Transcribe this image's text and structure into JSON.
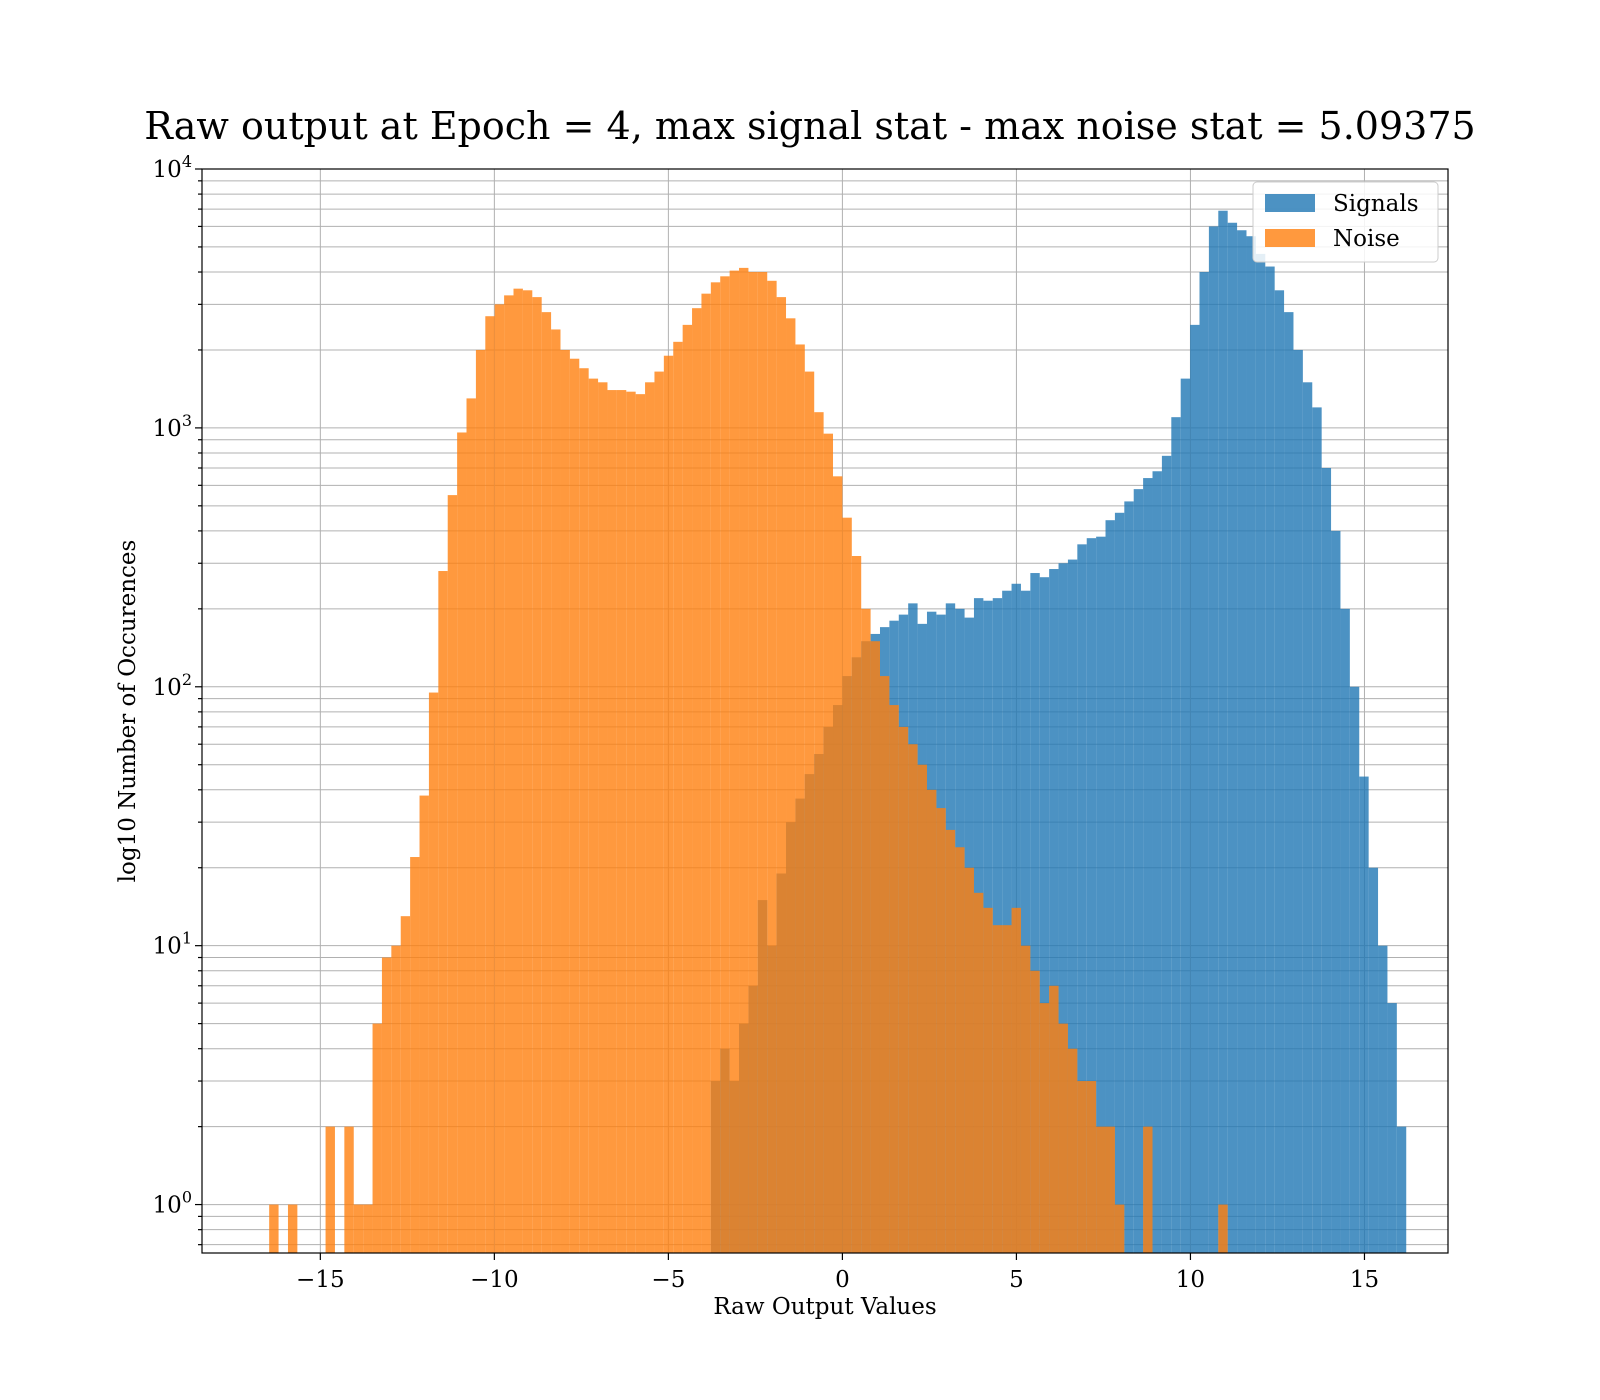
{
  "chart_data": {
    "type": "bar",
    "title": "Raw output at Epoch = 4, max signal stat - max noise stat = 5.09375",
    "xlabel": "Raw Output Values",
    "ylabel": "log10 Number of Occurences",
    "xlim": [
      -18.4,
      17.4
    ],
    "ylim": [
      0.65,
      10000
    ],
    "yscale": "log",
    "grid": true,
    "legend_position": "top-right",
    "x_ticks": [
      -15,
      -10,
      -5,
      0,
      5,
      10,
      15
    ],
    "x_tick_labels": [
      "−15",
      "−10",
      "−5",
      "0",
      "5",
      "10",
      "15"
    ],
    "y_ticks": [
      {
        "base": "10",
        "exp": "0",
        "value": 1
      },
      {
        "base": "10",
        "exp": "1",
        "value": 10
      },
      {
        "base": "10",
        "exp": "2",
        "value": 100
      },
      {
        "base": "10",
        "exp": "3",
        "value": 1000
      },
      {
        "base": "10",
        "exp": "4",
        "value": 10000
      }
    ],
    "bin_width": 0.27,
    "series": [
      {
        "name": "Signals",
        "color": "#1f77b4",
        "opacity": 0.8,
        "bins": [
          [
            -3.78,
            3
          ],
          [
            -3.51,
            4
          ],
          [
            -3.24,
            3
          ],
          [
            -2.97,
            5
          ],
          [
            -2.7,
            7
          ],
          [
            -2.43,
            15
          ],
          [
            -2.16,
            10
          ],
          [
            -1.89,
            19
          ],
          [
            -1.62,
            30
          ],
          [
            -1.35,
            37
          ],
          [
            -1.08,
            46
          ],
          [
            -0.81,
            55
          ],
          [
            -0.54,
            70
          ],
          [
            -0.27,
            85
          ],
          [
            0.0,
            110
          ],
          [
            0.27,
            130
          ],
          [
            0.54,
            150
          ],
          [
            0.81,
            160
          ],
          [
            1.08,
            170
          ],
          [
            1.35,
            180
          ],
          [
            1.62,
            190
          ],
          [
            1.89,
            210
          ],
          [
            2.16,
            175
          ],
          [
            2.43,
            195
          ],
          [
            2.7,
            190
          ],
          [
            2.97,
            210
          ],
          [
            3.24,
            200
          ],
          [
            3.51,
            185
          ],
          [
            3.78,
            220
          ],
          [
            4.05,
            215
          ],
          [
            4.32,
            220
          ],
          [
            4.59,
            235
          ],
          [
            4.86,
            250
          ],
          [
            5.13,
            235
          ],
          [
            5.4,
            275
          ],
          [
            5.67,
            265
          ],
          [
            5.94,
            285
          ],
          [
            6.21,
            300
          ],
          [
            6.48,
            310
          ],
          [
            6.75,
            355
          ],
          [
            7.02,
            375
          ],
          [
            7.29,
            380
          ],
          [
            7.56,
            440
          ],
          [
            7.83,
            470
          ],
          [
            8.1,
            520
          ],
          [
            8.37,
            580
          ],
          [
            8.64,
            640
          ],
          [
            8.91,
            680
          ],
          [
            9.18,
            780
          ],
          [
            9.45,
            1100
          ],
          [
            9.72,
            1550
          ],
          [
            9.99,
            2500
          ],
          [
            10.26,
            4000
          ],
          [
            10.53,
            6000
          ],
          [
            10.8,
            6900
          ],
          [
            11.07,
            6200
          ],
          [
            11.34,
            5800
          ],
          [
            11.61,
            5500
          ],
          [
            11.88,
            4700
          ],
          [
            12.15,
            4200
          ],
          [
            12.42,
            3400
          ],
          [
            12.69,
            2800
          ],
          [
            12.96,
            2000
          ],
          [
            13.23,
            1500
          ],
          [
            13.5,
            1200
          ],
          [
            13.77,
            700
          ],
          [
            14.04,
            400
          ],
          [
            14.31,
            200
          ],
          [
            14.58,
            100
          ],
          [
            14.85,
            45
          ],
          [
            15.12,
            20
          ],
          [
            15.39,
            10
          ],
          [
            15.66,
            6
          ],
          [
            15.93,
            2
          ]
        ]
      },
      {
        "name": "Noise",
        "color": "#ff7f0e",
        "opacity": 0.8,
        "bins": [
          [
            -16.47,
            1
          ],
          [
            -15.93,
            1
          ],
          [
            -14.85,
            2
          ],
          [
            -14.31,
            2
          ],
          [
            -14.04,
            1
          ],
          [
            -13.77,
            1
          ],
          [
            -13.5,
            5
          ],
          [
            -13.23,
            9
          ],
          [
            -12.96,
            10
          ],
          [
            -12.69,
            13
          ],
          [
            -12.42,
            22
          ],
          [
            -12.15,
            38
          ],
          [
            -11.88,
            95
          ],
          [
            -11.61,
            280
          ],
          [
            -11.34,
            550
          ],
          [
            -11.07,
            960
          ],
          [
            -10.8,
            1300
          ],
          [
            -10.53,
            2000
          ],
          [
            -10.26,
            2700
          ],
          [
            -9.99,
            3000
          ],
          [
            -9.72,
            3250
          ],
          [
            -9.45,
            3450
          ],
          [
            -9.18,
            3400
          ],
          [
            -8.91,
            3200
          ],
          [
            -8.64,
            2800
          ],
          [
            -8.37,
            2400
          ],
          [
            -8.1,
            2000
          ],
          [
            -7.83,
            1850
          ],
          [
            -7.56,
            1700
          ],
          [
            -7.29,
            1550
          ],
          [
            -7.02,
            1500
          ],
          [
            -6.75,
            1400
          ],
          [
            -6.48,
            1400
          ],
          [
            -6.21,
            1380
          ],
          [
            -5.94,
            1350
          ],
          [
            -5.67,
            1500
          ],
          [
            -5.4,
            1650
          ],
          [
            -5.13,
            1900
          ],
          [
            -4.86,
            2150
          ],
          [
            -4.59,
            2500
          ],
          [
            -4.32,
            2900
          ],
          [
            -4.05,
            3300
          ],
          [
            -3.78,
            3650
          ],
          [
            -3.51,
            3850
          ],
          [
            -3.24,
            4050
          ],
          [
            -2.97,
            4150
          ],
          [
            -2.7,
            4000
          ],
          [
            -2.43,
            4000
          ],
          [
            -2.16,
            3700
          ],
          [
            -1.89,
            3200
          ],
          [
            -1.62,
            2650
          ],
          [
            -1.35,
            2100
          ],
          [
            -1.08,
            1650
          ],
          [
            -0.81,
            1150
          ],
          [
            -0.54,
            950
          ],
          [
            -0.27,
            650
          ],
          [
            0.0,
            450
          ],
          [
            0.27,
            320
          ],
          [
            0.54,
            200
          ],
          [
            0.81,
            150
          ],
          [
            1.08,
            110
          ],
          [
            1.35,
            85
          ],
          [
            1.62,
            70
          ],
          [
            1.89,
            60
          ],
          [
            2.16,
            50
          ],
          [
            2.43,
            40
          ],
          [
            2.7,
            34
          ],
          [
            2.97,
            28
          ],
          [
            3.24,
            24
          ],
          [
            3.51,
            20
          ],
          [
            3.78,
            16
          ],
          [
            4.05,
            14
          ],
          [
            4.32,
            12
          ],
          [
            4.59,
            12
          ],
          [
            4.86,
            14
          ],
          [
            5.13,
            10
          ],
          [
            5.4,
            8
          ],
          [
            5.67,
            6
          ],
          [
            5.94,
            7
          ],
          [
            6.21,
            5
          ],
          [
            6.48,
            4
          ],
          [
            6.75,
            3
          ],
          [
            7.02,
            3
          ],
          [
            7.29,
            2
          ],
          [
            7.56,
            2
          ],
          [
            7.83,
            1
          ],
          [
            8.64,
            2
          ],
          [
            10.8,
            1
          ]
        ]
      }
    ]
  }
}
